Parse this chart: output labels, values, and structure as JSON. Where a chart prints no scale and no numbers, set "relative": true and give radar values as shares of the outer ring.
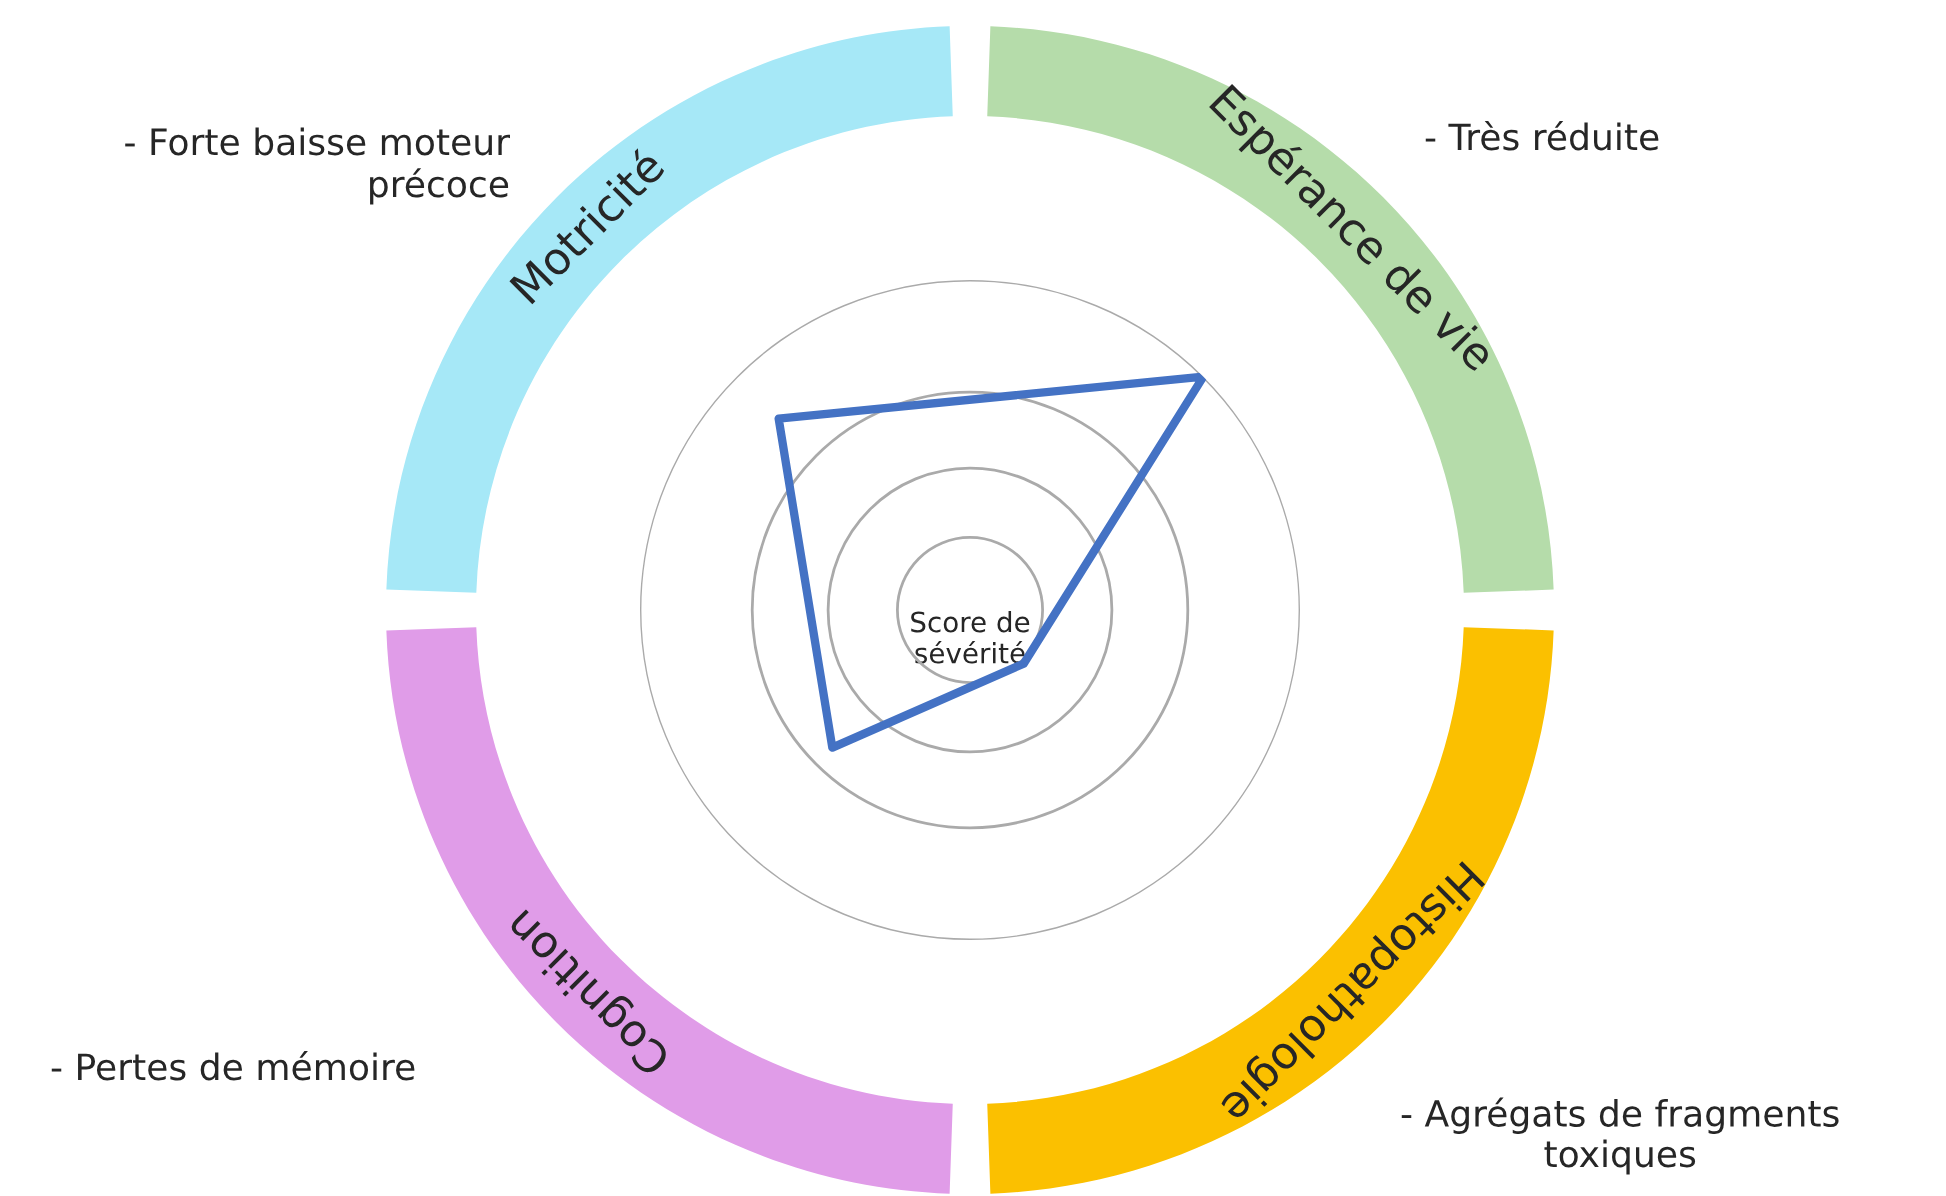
{
  "chart_data": {
    "type": "radar",
    "relative": true,
    "grid": "y",
    "legend": false,
    "categories": [
      "Espérance de vie",
      "Histopathologie",
      "Cognition",
      "Motricité"
    ],
    "series": [
      {
        "color": "#4472c4",
        "values": [
          1.0,
          0.23,
          0.59,
          0.82
        ]
      }
    ],
    "annotations": [
      "- Très réduite",
      "- Agrégats de fragments\ntoxiques",
      "- Pertes de mémoire",
      "- Forte baisse moteur\nprécoce",
      "Score de\nsévérité"
    ]
  }
}
